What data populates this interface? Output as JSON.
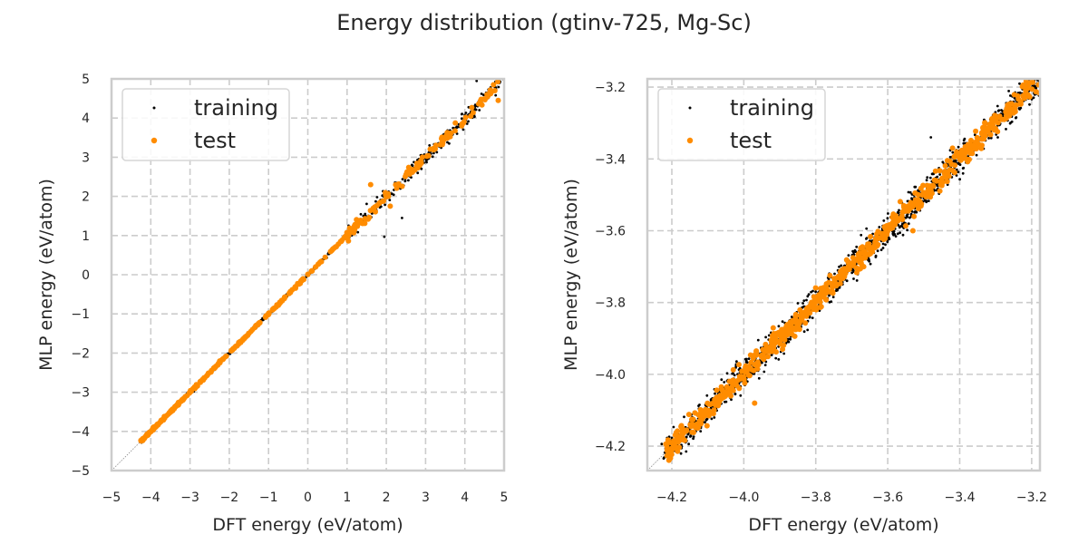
{
  "title": "Energy distribution (gtinv-725, Mg-Sc)",
  "chart_data": [
    {
      "type": "scatter",
      "name": "full-range",
      "xlabel": "DFT energy (eV/atom)",
      "ylabel": "MLP energy (eV/atom)",
      "xlim": [
        -5,
        5
      ],
      "ylim": [
        -5,
        5
      ],
      "xticks": [
        -5,
        -4,
        -3,
        -2,
        -1,
        0,
        1,
        2,
        3,
        4,
        5
      ],
      "yticks": [
        -5,
        -4,
        -3,
        -2,
        -1,
        0,
        1,
        2,
        3,
        4,
        5
      ],
      "xtick_labels": [
        "−5",
        "−4",
        "−3",
        "−2",
        "−1",
        "0",
        "1",
        "2",
        "3",
        "4",
        "5"
      ],
      "ytick_labels": [
        "−5",
        "−4",
        "−3",
        "−2",
        "−1",
        "0",
        "1",
        "2",
        "3",
        "4",
        "5"
      ],
      "grid": true,
      "legend": {
        "position": "top-left",
        "entries": [
          "training",
          "test"
        ]
      },
      "reference_line": "y = x",
      "series": [
        {
          "name": "training",
          "color": "#000000",
          "range": [
            -4.25,
            4.9
          ],
          "count": 900,
          "noise": 0.04,
          "outliers": [
            [
              1.95,
              0.97
            ],
            [
              2.4,
              1.45
            ],
            [
              1.85,
              1.8
            ],
            [
              4.3,
              4.95
            ],
            [
              3.1,
              3.3
            ],
            [
              2.8,
              2.6
            ],
            [
              3.6,
              3.35
            ]
          ]
        },
        {
          "name": "test",
          "color": "#ff8c00",
          "range": [
            -4.25,
            4.9
          ],
          "count": 420,
          "noise": 0.03,
          "outliers": [
            [
              1.6,
              2.3
            ],
            [
              4.85,
              4.45
            ],
            [
              2.1,
              1.75
            ]
          ]
        }
      ]
    },
    {
      "type": "scatter",
      "name": "zoomed-range",
      "xlabel": "DFT energy (eV/atom)",
      "ylabel": "MLP energy (eV/atom)",
      "xlim": [
        -4.268,
        -3.177
      ],
      "ylim": [
        -4.268,
        -3.177
      ],
      "xticks": [
        -4.2,
        -4.0,
        -3.8,
        -3.6,
        -3.4,
        -3.2
      ],
      "yticks": [
        -4.2,
        -4.0,
        -3.8,
        -3.6,
        -3.4,
        -3.2
      ],
      "xtick_labels": [
        "−4.2",
        "−4.0",
        "−3.8",
        "−3.6",
        "−3.4",
        "−3.2"
      ],
      "ytick_labels": [
        "−4.2",
        "−4.0",
        "−3.8",
        "−3.6",
        "−3.4",
        "−3.2"
      ],
      "grid": true,
      "legend": {
        "position": "top-left",
        "entries": [
          "training",
          "test"
        ]
      },
      "reference_line": "y = x",
      "series": [
        {
          "name": "training",
          "color": "#000000",
          "range": [
            -4.22,
            -3.18
          ],
          "count": 1400,
          "noise": 0.018,
          "outliers": [
            [
              -3.48,
              -3.34
            ],
            [
              -3.55,
              -3.58
            ],
            [
              -3.99,
              -4.02
            ]
          ]
        },
        {
          "name": "test",
          "color": "#ff8c00",
          "range": [
            -4.22,
            -3.18
          ],
          "count": 700,
          "noise": 0.014,
          "outliers": [
            [
              -3.97,
              -4.08
            ],
            [
              -3.53,
              -3.6
            ],
            [
              -3.42,
              -3.37
            ]
          ]
        }
      ]
    }
  ]
}
